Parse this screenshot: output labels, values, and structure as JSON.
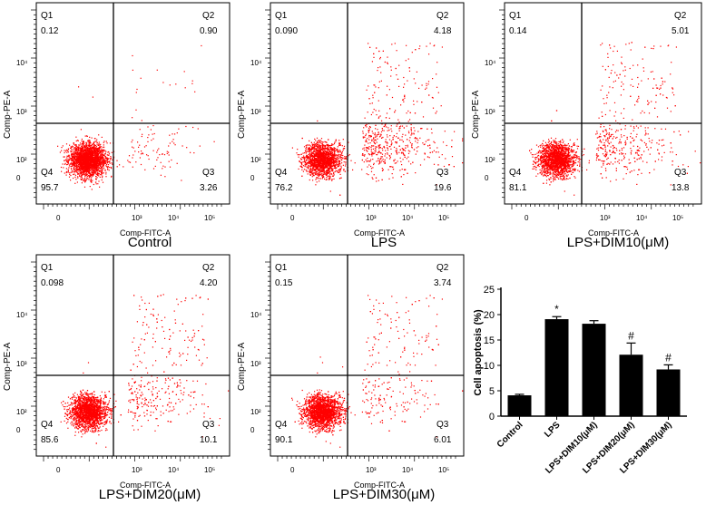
{
  "figure": {
    "axes": {
      "x_title": "Comp-FITC-A",
      "y_title": "Comp-PE-A",
      "x_ticks": [
        "0",
        "10³",
        "10⁴",
        "10⁵"
      ],
      "y_ticks": [
        "10⁴",
        "10³",
        "10²",
        "0"
      ]
    },
    "plots": [
      {
        "caption": "Control",
        "q1_label": "Q1",
        "q1": "0.12",
        "q2_label": "Q2",
        "q2": "0.90",
        "q3_label": "Q3",
        "q3": "3.26",
        "q4_label": "Q4",
        "q4": "95.7"
      },
      {
        "caption": "LPS",
        "q1_label": "Q1",
        "q1": "0.090",
        "q2_label": "Q2",
        "q2": "4.18",
        "q3_label": "Q3",
        "q3": "19.6",
        "q4_label": "Q4",
        "q4": "76.2"
      },
      {
        "caption": "LPS+DIM10(μM)",
        "q1_label": "Q1",
        "q1": "0.14",
        "q2_label": "Q2",
        "q2": "5.01",
        "q3_label": "Q3",
        "q3": "13.8",
        "q4_label": "Q4",
        "q4": "81.1"
      },
      {
        "caption": "LPS+DIM20(μM)",
        "q1_label": "Q1",
        "q1": "0.098",
        "q2_label": "Q2",
        "q2": "4.20",
        "q3_label": "Q3",
        "q3": "10.1",
        "q4_label": "Q4",
        "q4": "85.6"
      },
      {
        "caption": "LPS+DIM30(μM)",
        "q1_label": "Q1",
        "q1": "0.15",
        "q2_label": "Q2",
        "q2": "3.74",
        "q3_label": "Q3",
        "q3": "6.01",
        "q4_label": "Q4",
        "q4": "90.1"
      }
    ]
  },
  "chart_data": [
    {
      "type": "scatter",
      "title": "Control",
      "xlabel": "Comp-FITC-A",
      "ylabel": "Comp-PE-A",
      "quadrants": {
        "Q1": 0.12,
        "Q2": 0.9,
        "Q3": 3.26,
        "Q4": 95.7
      }
    },
    {
      "type": "scatter",
      "title": "LPS",
      "xlabel": "Comp-FITC-A",
      "ylabel": "Comp-PE-A",
      "quadrants": {
        "Q1": 0.09,
        "Q2": 4.18,
        "Q3": 19.6,
        "Q4": 76.2
      }
    },
    {
      "type": "scatter",
      "title": "LPS+DIM10(μM)",
      "xlabel": "Comp-FITC-A",
      "ylabel": "Comp-PE-A",
      "quadrants": {
        "Q1": 0.14,
        "Q2": 5.01,
        "Q3": 13.8,
        "Q4": 81.1
      }
    },
    {
      "type": "scatter",
      "title": "LPS+DIM20(μM)",
      "xlabel": "Comp-FITC-A",
      "ylabel": "Comp-PE-A",
      "quadrants": {
        "Q1": 0.098,
        "Q2": 4.2,
        "Q3": 10.1,
        "Q4": 85.6
      }
    },
    {
      "type": "scatter",
      "title": "LPS+DIM30(μM)",
      "xlabel": "Comp-FITC-A",
      "ylabel": "Comp-PE-A",
      "quadrants": {
        "Q1": 0.15,
        "Q2": 3.74,
        "Q3": 6.01,
        "Q4": 90.1
      }
    },
    {
      "type": "bar",
      "title": "",
      "xlabel": "",
      "ylabel": "Cell apoptosis (%)",
      "ylim": [
        0,
        25
      ],
      "yticks": [
        "0",
        "5",
        "10",
        "15",
        "20",
        "25"
      ],
      "categories": [
        "Control",
        "LPS",
        "LPS+DIM10(μM)",
        "LPS+DIM20(μM)",
        "LPS+DIM30(μM)"
      ],
      "values": [
        4.1,
        19.1,
        18.2,
        12.1,
        9.2
      ],
      "errors": [
        0.2,
        0.5,
        0.6,
        2.3,
        0.9
      ],
      "annotations": [
        "",
        "*",
        "",
        "#",
        "#"
      ]
    }
  ]
}
